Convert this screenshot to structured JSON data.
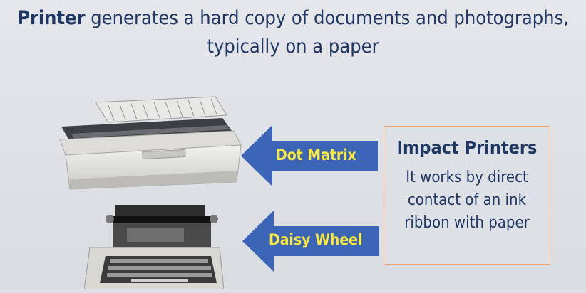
{
  "title": {
    "bold": "Printer",
    "rest_line1": " generates a hard copy of documents and photographs,",
    "line2": "typically on a paper"
  },
  "arrows": {
    "dot_matrix": "Dot Matrix",
    "daisy_wheel": "Daisy Wheel"
  },
  "impact_box": {
    "heading": "Impact Printers",
    "body": "It works by direct contact of an ink ribbon with paper"
  },
  "colors": {
    "title_text": "#1f3763",
    "arrow_fill": "#3b66b8",
    "arrow_label": "#ffe83a",
    "box_border": "#f2a26a"
  }
}
